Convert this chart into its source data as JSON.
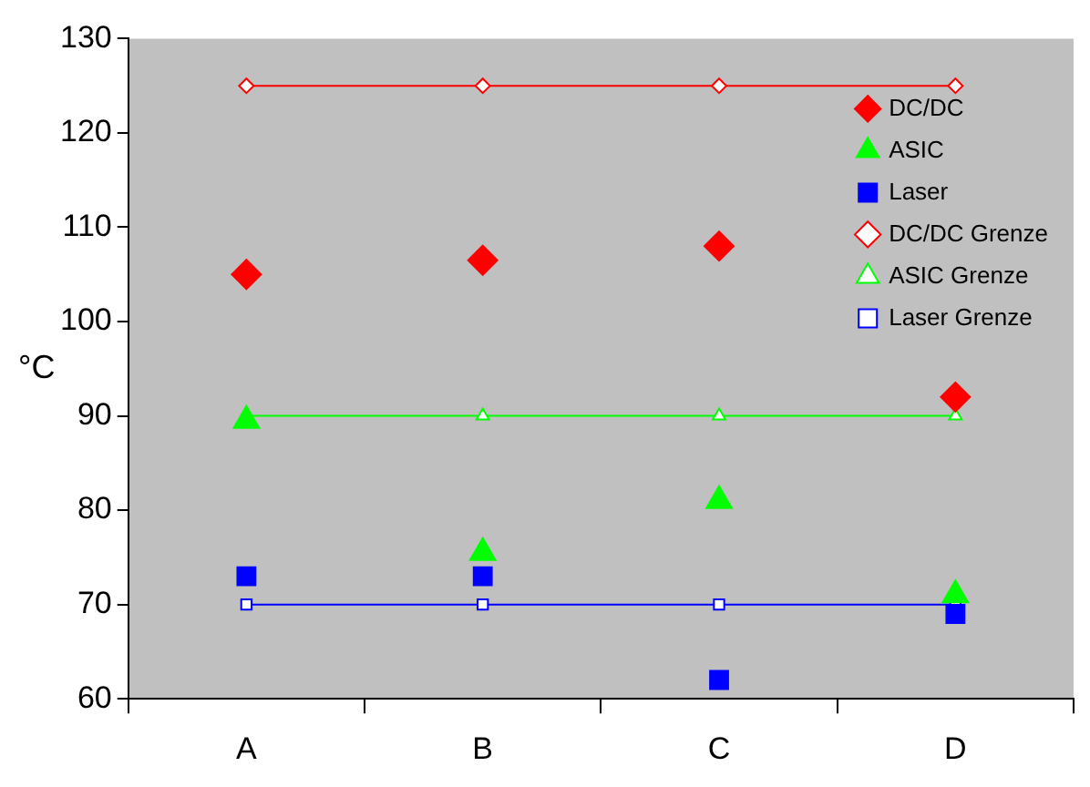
{
  "chart_data": {
    "type": "scatter",
    "ylabel": "°C",
    "categories": [
      "A",
      "B",
      "C",
      "D"
    ],
    "ylim": [
      60,
      130
    ],
    "yticks": [
      60,
      70,
      80,
      90,
      100,
      110,
      120,
      130
    ],
    "grid": false,
    "legend": "top right",
    "series": [
      {
        "name": "DC/DC",
        "marker": "diamond",
        "color": "#ff0000",
        "values": [
          105,
          106.5,
          108,
          92
        ]
      },
      {
        "name": "ASIC",
        "marker": "triangle",
        "color": "#00ff00",
        "values": [
          89.5,
          75.5,
          81,
          71
        ]
      },
      {
        "name": "Laser",
        "marker": "square",
        "color": "#0000ff",
        "values": [
          73,
          73,
          62,
          69
        ]
      },
      {
        "name": "DC/DC Grenze",
        "type": "line",
        "marker": "diamond",
        "color": "#ff0000",
        "values": [
          125,
          125,
          125,
          125
        ]
      },
      {
        "name": "ASIC Grenze",
        "type": "line",
        "marker": "triangle",
        "color": "#00ff00",
        "values": [
          90,
          90,
          90,
          90
        ]
      },
      {
        "name": "Laser Grenze",
        "type": "line",
        "marker": "square",
        "color": "#0000ff",
        "values": [
          70,
          70,
          70,
          70
        ]
      }
    ]
  }
}
